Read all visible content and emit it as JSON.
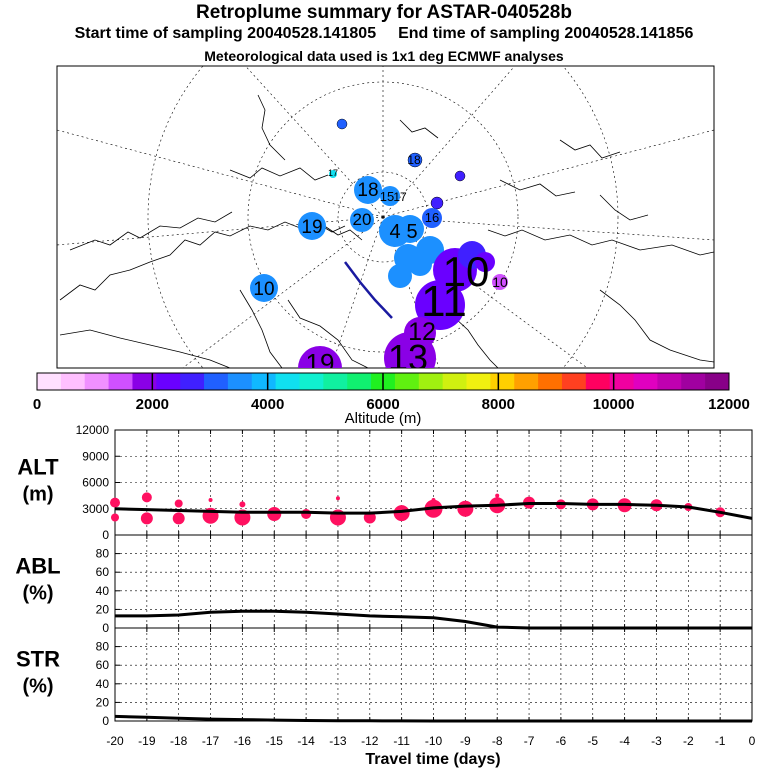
{
  "header": {
    "title": "Retroplume summary for ASTAR-040528b",
    "start_label": "Start time of sampling 20040528.141805",
    "end_label": "End time of sampling 20040528.141856",
    "met_label": "Meteorological data used is 1x1 deg ECMWF analyses"
  },
  "colors": {
    "alt_dots": "#ff1060",
    "line": "#000000",
    "scale": [
      "#ffe0ff",
      "#ffc0ff",
      "#f090ff",
      "#d050ff",
      "#8a00e6",
      "#6a00ff",
      "#4020ff",
      "#2060ff",
      "#1c90ff",
      "#10b8ff",
      "#10e0f0",
      "#10f0d0",
      "#10f0a0",
      "#10f070",
      "#20f020",
      "#60f010",
      "#a0f010",
      "#d0f010",
      "#f0f010",
      "#ffd000",
      "#ffa000",
      "#ff7000",
      "#ff4020",
      "#ff0060",
      "#f000a0",
      "#e000c0",
      "#c000b0",
      "#a000a0",
      "#880088"
    ]
  },
  "map": {
    "labels": [
      {
        "text": "18",
        "color": "#2060ff"
      },
      {
        "text": "17",
        "color": "#10b8ff"
      },
      {
        "text": "18",
        "color": "#1c90ff"
      },
      {
        "text": "15",
        "color": "#1c90ff"
      },
      {
        "text": "17",
        "color": "#1c90ff"
      },
      {
        "text": "19",
        "color": "#1c90ff"
      },
      {
        "text": "20",
        "color": "#1c90ff"
      },
      {
        "text": "4",
        "color": "#1c90ff"
      },
      {
        "text": "5",
        "color": "#1c90ff"
      },
      {
        "text": "16",
        "color": "#4020ff"
      },
      {
        "text": "10",
        "color": "#1c90ff"
      },
      {
        "text": "10",
        "color": "#6a00ff"
      },
      {
        "text": "11",
        "color": "#6a00ff"
      },
      {
        "text": "12",
        "color": "#8a00e6"
      },
      {
        "text": "13",
        "color": "#8a00e6"
      },
      {
        "text": "19",
        "color": "#8a00e6"
      },
      {
        "text": "10",
        "color": "#d050ff"
      }
    ]
  },
  "colorbar": {
    "ticks": [
      "0",
      "2000",
      "4000",
      "6000",
      "8000",
      "10000",
      "12000"
    ],
    "label": "Altitude (m)"
  },
  "chart_data": [
    {
      "type": "line",
      "name": "ALT",
      "ylabel": "ALT",
      "yunit": "(m)",
      "ylim": [
        0,
        12000
      ],
      "yticks": [
        "12000",
        "9000",
        "6000",
        "3000",
        "0"
      ],
      "x": [
        -20,
        -19,
        -18,
        -17,
        -16,
        -15,
        -14,
        -13,
        -12,
        -11,
        -10,
        -9,
        -8,
        -7,
        -6,
        -5,
        -4,
        -3,
        -2,
        -1,
        0
      ],
      "values": [
        3000,
        2900,
        2800,
        2700,
        2600,
        2600,
        2600,
        2500,
        2500,
        2700,
        3100,
        3300,
        3400,
        3600,
        3600,
        3500,
        3500,
        3400,
        3200,
        2600,
        1900
      ],
      "dots": [
        {
          "x": -20,
          "y": 3700,
          "r": 5
        },
        {
          "x": -20,
          "y": 2000,
          "r": 4
        },
        {
          "x": -19,
          "y": 4300,
          "r": 5
        },
        {
          "x": -19,
          "y": 1900,
          "r": 6
        },
        {
          "x": -18,
          "y": 3600,
          "r": 4
        },
        {
          "x": -18,
          "y": 1900,
          "r": 6
        },
        {
          "x": -17,
          "y": 4000,
          "r": 2
        },
        {
          "x": -17,
          "y": 2200,
          "r": 8
        },
        {
          "x": -16,
          "y": 3500,
          "r": 3
        },
        {
          "x": -16,
          "y": 2000,
          "r": 8
        },
        {
          "x": -15,
          "y": 2400,
          "r": 7
        },
        {
          "x": -14,
          "y": 2400,
          "r": 5
        },
        {
          "x": -13,
          "y": 4200,
          "r": 2
        },
        {
          "x": -13,
          "y": 2000,
          "r": 8
        },
        {
          "x": -12,
          "y": 2000,
          "r": 6
        },
        {
          "x": -11,
          "y": 2500,
          "r": 8
        },
        {
          "x": -10,
          "y": 4000,
          "r": 2
        },
        {
          "x": -10,
          "y": 3000,
          "r": 9
        },
        {
          "x": -9,
          "y": 3000,
          "r": 8
        },
        {
          "x": -8,
          "y": 4500,
          "r": 2
        },
        {
          "x": -8,
          "y": 3400,
          "r": 8
        },
        {
          "x": -7,
          "y": 3700,
          "r": 6
        },
        {
          "x": -6,
          "y": 3500,
          "r": 5
        },
        {
          "x": -5,
          "y": 3500,
          "r": 6
        },
        {
          "x": -4,
          "y": 3400,
          "r": 7
        },
        {
          "x": -3,
          "y": 3400,
          "r": 6
        },
        {
          "x": -2,
          "y": 3200,
          "r": 4
        },
        {
          "x": -1,
          "y": 2600,
          "r": 5
        }
      ]
    },
    {
      "type": "line",
      "name": "ABL",
      "ylabel": "ABL",
      "yunit": "(%)",
      "ylim": [
        0,
        100
      ],
      "yticks": [
        "80",
        "60",
        "40",
        "20",
        "0"
      ],
      "x": [
        -20,
        -19,
        -18,
        -17,
        -16,
        -15,
        -14,
        -13,
        -12,
        -11,
        -10,
        -9,
        -8,
        -7,
        -6,
        -5,
        -4,
        -3,
        -2,
        -1,
        0
      ],
      "values": [
        13,
        13,
        14,
        17,
        18,
        18,
        17,
        15,
        13,
        12,
        11,
        7,
        1,
        0,
        0,
        0,
        0,
        0,
        0,
        0,
        0
      ]
    },
    {
      "type": "line",
      "name": "STR",
      "ylabel": "STR",
      "yunit": "(%)",
      "ylim": [
        0,
        100
      ],
      "yticks": [
        "80",
        "60",
        "40",
        "20",
        "0"
      ],
      "x": [
        -20,
        -19,
        -18,
        -17,
        -16,
        -15,
        -14,
        -13,
        -12,
        -11,
        -10,
        -9,
        -8,
        -7,
        -6,
        -5,
        -4,
        -3,
        -2,
        -1,
        0
      ],
      "values": [
        5,
        4,
        3,
        2,
        1.5,
        1,
        0.5,
        0.3,
        0.2,
        0.1,
        0,
        0,
        0,
        0,
        0,
        0,
        0,
        0,
        0,
        0,
        0
      ]
    }
  ],
  "xaxis": {
    "ticks": [
      "-20",
      "-19",
      "-18",
      "-17",
      "-16",
      "-15",
      "-14",
      "-13",
      "-12",
      "-11",
      "-10",
      "-9",
      "-8",
      "-7",
      "-6",
      "-5",
      "-4",
      "-3",
      "-2",
      "-1",
      "0"
    ],
    "label": "Travel time (days)"
  }
}
